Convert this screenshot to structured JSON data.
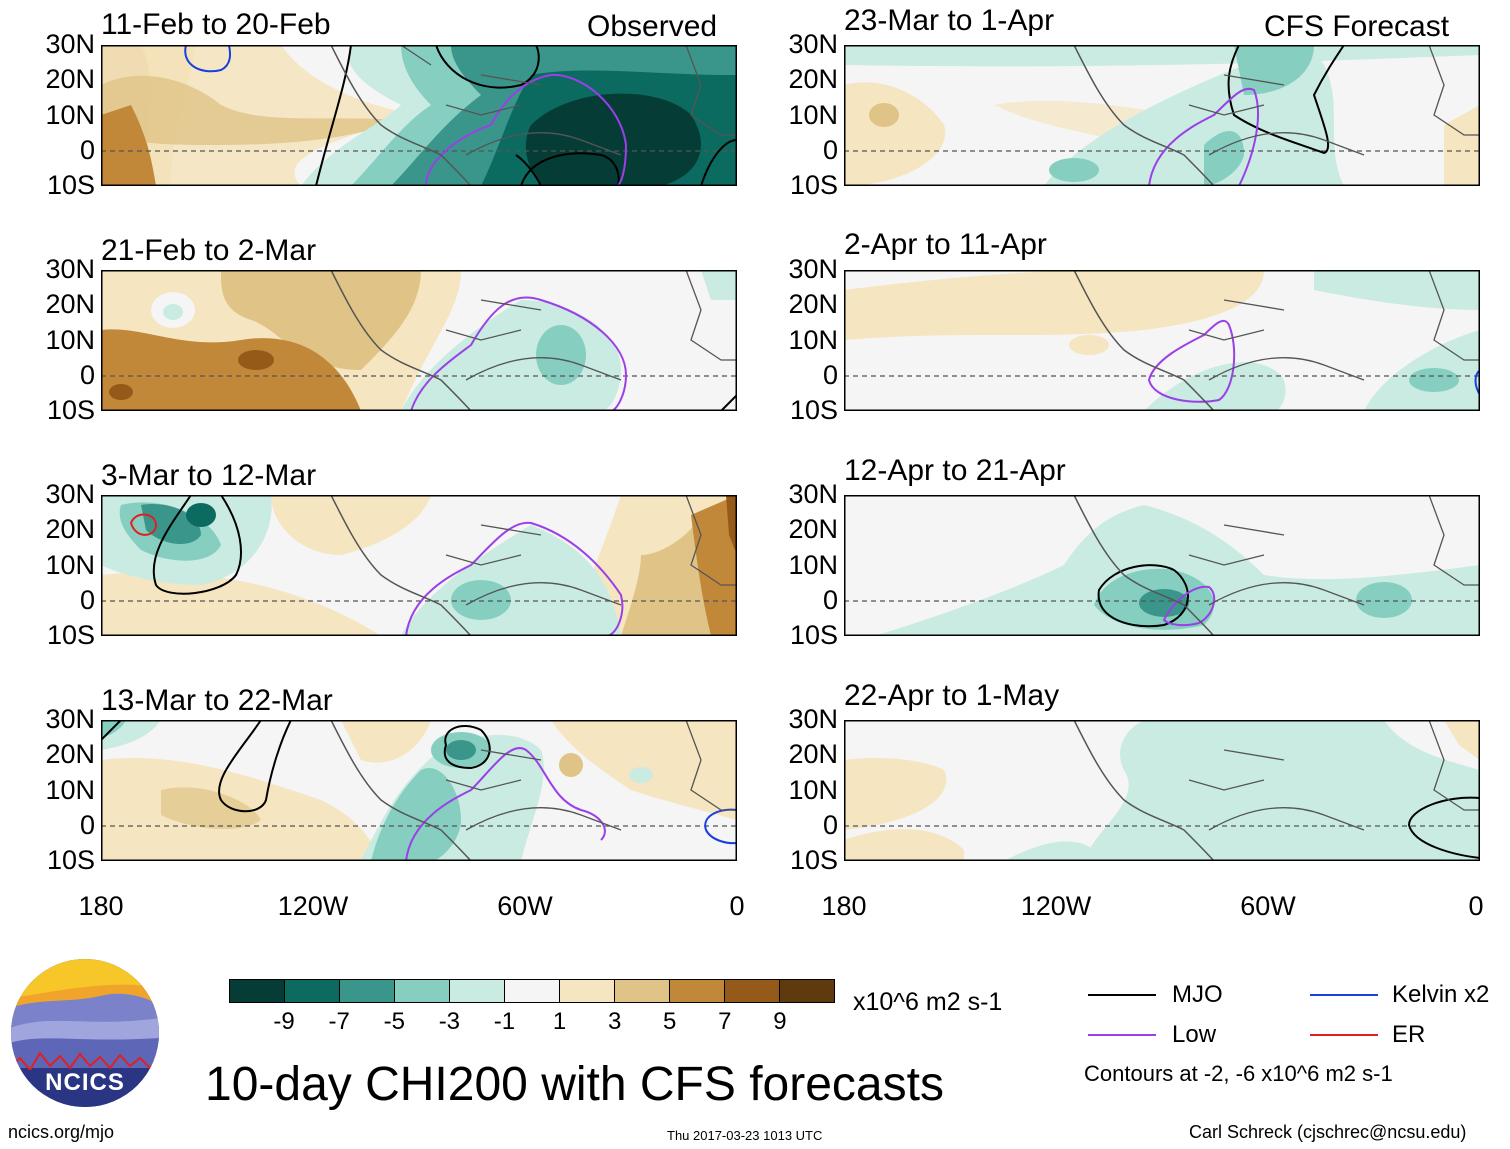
{
  "chart_data": {
    "type": "heatmap",
    "title": "10-day CHI200 with CFS forecasts",
    "variable": "CHI200",
    "units": "x10^6 m2 s-1",
    "colorbar": {
      "ticks": [
        "-9",
        "-7",
        "-5",
        "-3",
        "-1",
        "1",
        "3",
        "5",
        "7",
        "9"
      ],
      "colors": [
        "#053d36",
        "#0b6b60",
        "#3a968a",
        "#86cfc0",
        "#c9ebe2",
        "#f5f5f5",
        "#f5e5c0",
        "#e0c487",
        "#c2883a",
        "#955a1a",
        "#5f3a0e"
      ]
    },
    "lat_ticks": [
      "30N",
      "20N",
      "10N",
      "0",
      "10S"
    ],
    "lon_ticks": [
      "180",
      "120W",
      "60W",
      "0"
    ],
    "lat_range": [
      -10,
      30
    ],
    "lon_range": [
      -180,
      0
    ],
    "columns": [
      {
        "header": "Observed",
        "panels": [
          {
            "title": "11-Feb to 20-Feb"
          },
          {
            "title": "21-Feb to 2-Mar"
          },
          {
            "title": "3-Mar to 12-Mar"
          },
          {
            "title": "13-Mar to 22-Mar"
          }
        ]
      },
      {
        "header": "CFS Forecast",
        "panels": [
          {
            "title": "23-Mar to 1-Apr"
          },
          {
            "title": "2-Apr to 11-Apr"
          },
          {
            "title": "12-Apr to 21-Apr"
          },
          {
            "title": "22-Apr to 1-May"
          }
        ]
      }
    ],
    "legend": {
      "entries": [
        {
          "label": "MJO",
          "color": "#000000"
        },
        {
          "label": "Kelvin x2",
          "color": "#1a3fe0"
        },
        {
          "label": "Low",
          "color": "#9b3fe8"
        },
        {
          "label": "ER",
          "color": "#e02020"
        }
      ],
      "note": "Contours at -2, -6 x10^6 m2 s-1"
    }
  },
  "logo": {
    "text": "NCICS"
  },
  "footer": {
    "left": "ncics.org/mjo",
    "center": "Thu 2017-03-23 1013 UTC",
    "right": "Carl Schreck (cjschrec@ncsu.edu)"
  }
}
